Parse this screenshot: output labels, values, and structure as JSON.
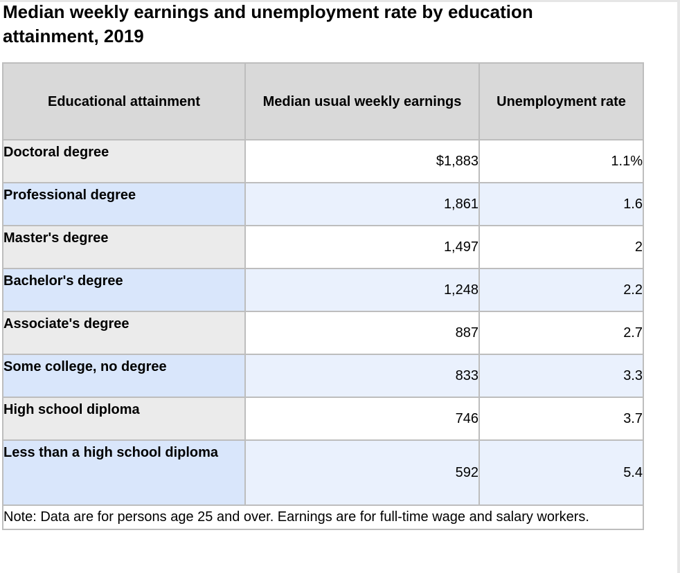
{
  "title": "Median weekly earnings and unemployment rate by education attainment, 2019",
  "chart_data": {
    "type": "table",
    "title": "Median weekly earnings and unemployment rate by education attainment, 2019",
    "columns": [
      "Educational attainment",
      "Median usual weekly earnings",
      "Unemployment rate"
    ],
    "rows": [
      {
        "attainment": "Doctoral degree",
        "earnings": "$1,883",
        "rate": "1.1%"
      },
      {
        "attainment": "Professional degree",
        "earnings": "1,861",
        "rate": "1.6"
      },
      {
        "attainment": "Master's degree",
        "earnings": "1,497",
        "rate": "2"
      },
      {
        "attainment": "Bachelor's degree",
        "earnings": "1,248",
        "rate": "2.2"
      },
      {
        "attainment": "Associate's degree",
        "earnings": "887",
        "rate": "2.7"
      },
      {
        "attainment": "Some college, no degree",
        "earnings": "833",
        "rate": "3.3"
      },
      {
        "attainment": "High school diploma",
        "earnings": "746",
        "rate": "3.7"
      },
      {
        "attainment": "Less than a high school diploma",
        "earnings": "592",
        "rate": "5.4"
      }
    ],
    "note": "Note: Data are for persons age 25 and over. Earnings are for full-time wage and salary workers."
  },
  "colors": {
    "header_bg": "#d9d9d9",
    "label_bg_odd": "#ebebeb",
    "label_bg_even": "#d9e6fb",
    "value_bg_even": "#eaf1fd",
    "border": "#bdbdbd"
  }
}
